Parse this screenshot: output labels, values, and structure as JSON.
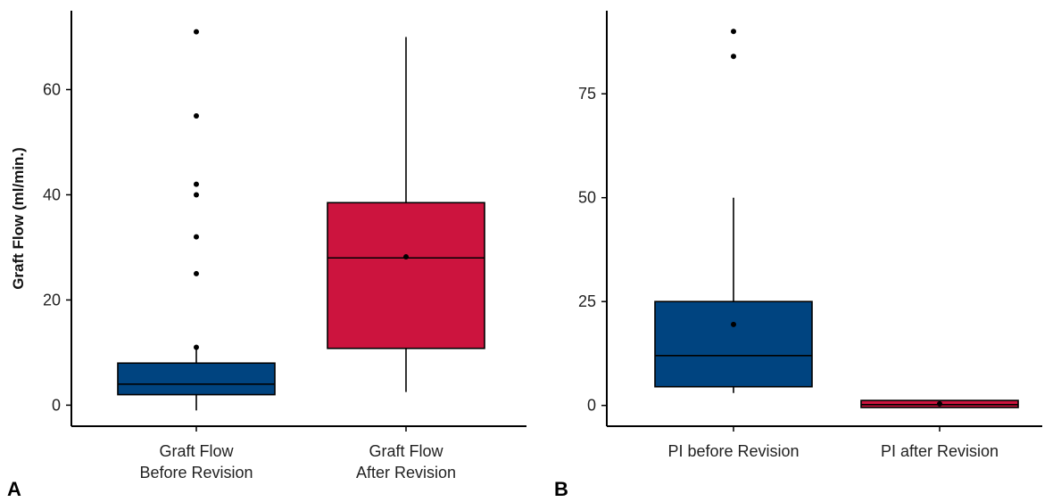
{
  "chart_data": [
    {
      "type": "box",
      "panel_label": "A",
      "ylabel": "Graft Flow (ml/min.)",
      "ylim": [
        -4,
        75
      ],
      "yticks": [
        0,
        20,
        40,
        60
      ],
      "grid": false,
      "categories": [
        [
          "Graft Flow",
          "Before Revision"
        ],
        [
          "Graft Flow",
          "After Revision"
        ]
      ],
      "boxes": [
        {
          "whisker_low": -1,
          "q1": 2,
          "median": 4,
          "q3": 8,
          "whisker_high": 11,
          "mean": 11,
          "outliers": [
            25,
            32,
            40,
            42,
            55,
            71
          ],
          "color": "#004480"
        },
        {
          "whisker_low": 2.5,
          "q1": 10.8,
          "median": 28,
          "q3": 38.5,
          "whisker_high": 70,
          "mean": 28.2,
          "outliers": [],
          "color": "#cc143e"
        }
      ]
    },
    {
      "type": "box",
      "panel_label": "B",
      "ylabel": "",
      "ylim": [
        -5,
        95
      ],
      "yticks": [
        0,
        25,
        50,
        75
      ],
      "grid": false,
      "categories": [
        [
          "PI before Revision"
        ],
        [
          "PI after Revision"
        ]
      ],
      "boxes": [
        {
          "whisker_low": 3,
          "q1": 4.5,
          "median": 12,
          "q3": 25,
          "whisker_high": 50,
          "mean": 19.5,
          "outliers": [
            84,
            90
          ],
          "color": "#004480"
        },
        {
          "whisker_low": -0.5,
          "q1": -0.5,
          "median": 0.2,
          "q3": 1.2,
          "whisker_high": 1.2,
          "mean": 0.4,
          "outliers": [],
          "color": "#cc143e"
        }
      ]
    }
  ]
}
